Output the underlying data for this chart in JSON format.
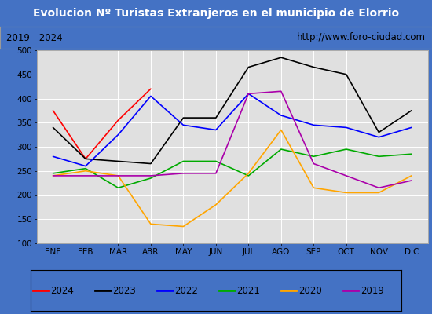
{
  "title": "Evolucion Nº Turistas Extranjeros en el municipio de Elorrio",
  "subtitle_left": "2019 - 2024",
  "subtitle_right": "http://www.foro-ciudad.com",
  "title_bg_color": "#4472c4",
  "subtitle_bg_color": "#f2f2f2",
  "plot_bg_color": "#e0e0e0",
  "fig_bg_color": "#4472c4",
  "months": [
    "ENE",
    "FEB",
    "MAR",
    "ABR",
    "MAY",
    "JUN",
    "JUL",
    "AGO",
    "SEP",
    "OCT",
    "NOV",
    "DIC"
  ],
  "ylim": [
    100,
    500
  ],
  "yticks": [
    100,
    150,
    200,
    250,
    300,
    350,
    400,
    450,
    500
  ],
  "series": {
    "2024": {
      "color": "#ff0000",
      "data": [
        375,
        275,
        355,
        420,
        null,
        null,
        null,
        null,
        null,
        null,
        null,
        null
      ]
    },
    "2023": {
      "color": "#000000",
      "data": [
        340,
        275,
        270,
        265,
        360,
        360,
        465,
        485,
        465,
        450,
        330,
        375
      ]
    },
    "2022": {
      "color": "#0000ff",
      "data": [
        280,
        260,
        325,
        405,
        345,
        335,
        410,
        365,
        345,
        340,
        320,
        340
      ]
    },
    "2021": {
      "color": "#00aa00",
      "data": [
        245,
        255,
        215,
        235,
        270,
        270,
        240,
        295,
        280,
        295,
        280,
        285
      ]
    },
    "2020": {
      "color": "#ffa500",
      "data": [
        240,
        250,
        240,
        140,
        135,
        180,
        245,
        335,
        215,
        205,
        205,
        240
      ]
    },
    "2019": {
      "color": "#aa00aa",
      "data": [
        240,
        240,
        240,
        240,
        245,
        245,
        410,
        415,
        265,
        240,
        215,
        230
      ]
    }
  },
  "legend_order": [
    "2024",
    "2023",
    "2022",
    "2021",
    "2020",
    "2019"
  ]
}
